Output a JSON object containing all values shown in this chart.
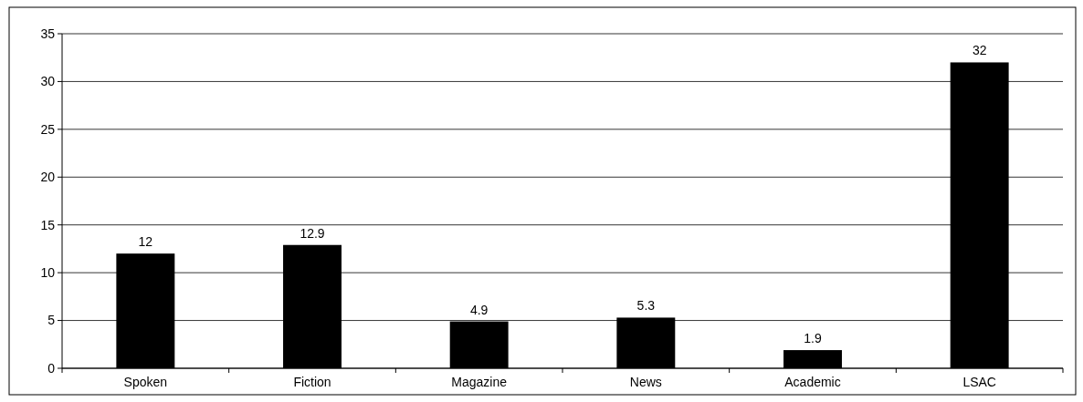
{
  "chart_data": {
    "type": "bar",
    "categories": [
      "Spoken",
      "Fiction",
      "Magazine",
      "News",
      "Academic",
      "LSAC"
    ],
    "values": [
      12,
      12.9,
      4.9,
      5.3,
      1.9,
      32
    ],
    "color": "#000000",
    "ylim": [
      0,
      35
    ],
    "yticks": [
      0,
      5,
      10,
      15,
      20,
      25,
      30,
      35
    ],
    "grid": "y",
    "data_labels": true
  }
}
